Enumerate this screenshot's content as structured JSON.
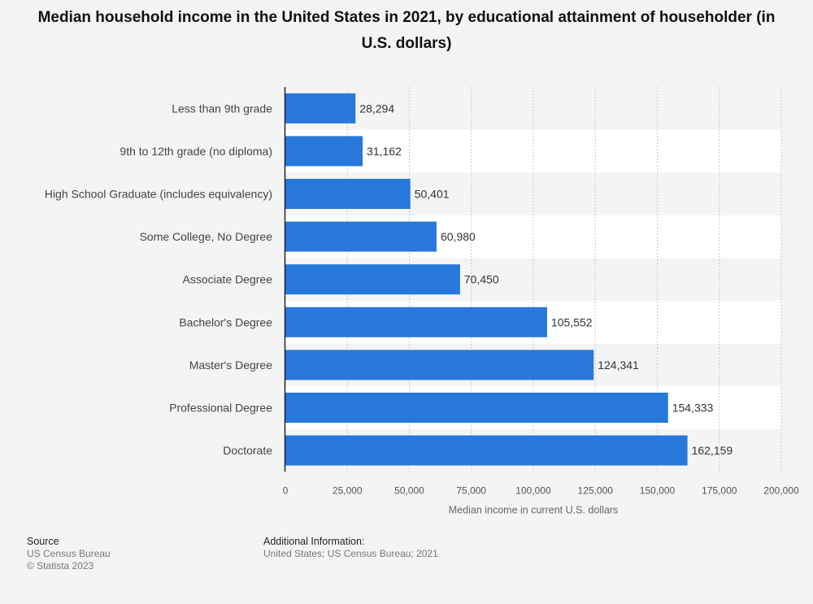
{
  "title": "Median household income in the United States in 2021, by educational attainment of householder (in U.S. dollars)",
  "footer": {
    "source_heading": "Source",
    "source_lines": [
      "US Census Bureau",
      "© Statista 2023"
    ],
    "additional_heading": "Additional Information:",
    "additional_text": "United States; US Census Bureau; 2021"
  },
  "colors": {
    "bar": "#2878dc",
    "stripe": "#ffffff",
    "background": "#f4f4f4"
  },
  "chart_data": {
    "type": "bar",
    "orientation": "horizontal",
    "categories": [
      "Less than 9th grade",
      "9th to 12th grade (no diploma)",
      "High School Graduate (includes equivalency)",
      "Some College, No Degree",
      "Associate Degree",
      "Bachelor's Degree",
      "Master's Degree",
      "Professional Degree",
      "Doctorate"
    ],
    "values": [
      28294,
      31162,
      50401,
      60980,
      70450,
      105552,
      124341,
      154333,
      162159
    ],
    "value_labels": [
      "28,294",
      "31,162",
      "50,401",
      "60,980",
      "70,450",
      "105,552",
      "124,341",
      "154,333",
      "162,159"
    ],
    "xlim": [
      0,
      200000
    ],
    "ticks": [
      0,
      25000,
      50000,
      75000,
      100000,
      125000,
      150000,
      175000,
      200000
    ],
    "tick_labels": [
      "0",
      "25,000",
      "50,000",
      "75,000",
      "100,000",
      "125,000",
      "150,000",
      "175,000",
      "200,000"
    ],
    "xlabel": "Median income in current U.S. dollars",
    "grid": true
  }
}
